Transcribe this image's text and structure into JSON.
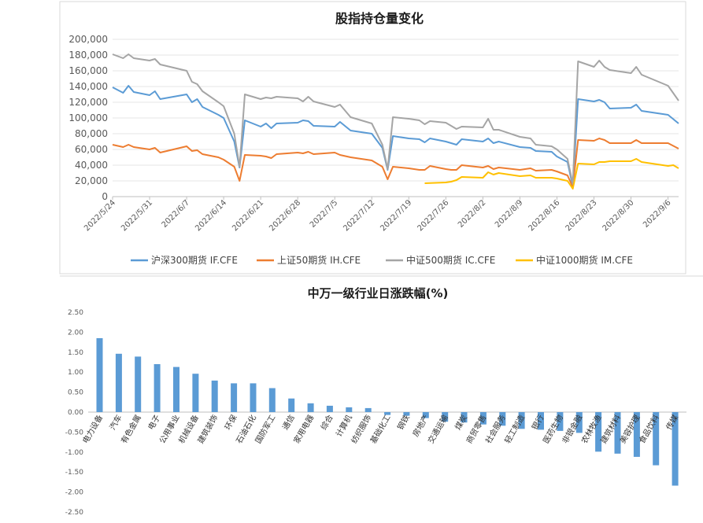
{
  "chart_data": [
    {
      "type": "line",
      "title": "股指持仓量变化",
      "ylim": [
        0,
        200000
      ],
      "yticks": [
        "0",
        "20,000",
        "40,000",
        "60,000",
        "80,000",
        "100,000",
        "120,000",
        "140,000",
        "160,000",
        "180,000",
        "200,000"
      ],
      "xlabels": [
        "2022/5/24",
        "2022/5/31",
        "2022/6/7",
        "2022/6/14",
        "2022/6/21",
        "2022/6/28",
        "2022/7/5",
        "2022/7/12",
        "2022/7/19",
        "2022/7/26",
        "2022/8/2",
        "2022/8/9",
        "2022/8/16",
        "2022/8/23",
        "2022/8/30",
        "2022/9/6"
      ],
      "grid": true,
      "legend_position": "bottom",
      "series": [
        {
          "name": "沪深300期货 IF.CFE",
          "color": "#5B9BD5",
          "points": [
            [
              "2022/5/24",
              139000
            ],
            [
              "2022/5/26",
              132000
            ],
            [
              "2022/5/27",
              141000
            ],
            [
              "2022/5/28",
              133000
            ],
            [
              "2022/5/31",
              129000
            ],
            [
              "2022/6/1",
              134000
            ],
            [
              "2022/6/2",
              124000
            ],
            [
              "2022/6/7",
              130000
            ],
            [
              "2022/6/8",
              120000
            ],
            [
              "2022/6/9",
              124000
            ],
            [
              "2022/6/10",
              114000
            ],
            [
              "2022/6/13",
              104000
            ],
            [
              "2022/6/14",
              100000
            ],
            [
              "2022/6/16",
              70000
            ],
            [
              "2022/6/17",
              37000
            ],
            [
              "2022/6/18",
              97000
            ],
            [
              "2022/6/21",
              89000
            ],
            [
              "2022/6/22",
              93000
            ],
            [
              "2022/6/23",
              87000
            ],
            [
              "2022/6/24",
              93000
            ],
            [
              "2022/6/28",
              94000
            ],
            [
              "2022/6/29",
              97000
            ],
            [
              "2022/6/30",
              96000
            ],
            [
              "2022/7/1",
              90000
            ],
            [
              "2022/7/5",
              89000
            ],
            [
              "2022/7/6",
              95000
            ],
            [
              "2022/7/8",
              84000
            ],
            [
              "2022/7/12",
              80000
            ],
            [
              "2022/7/14",
              62000
            ],
            [
              "2022/7/15",
              34000
            ],
            [
              "2022/7/16",
              77000
            ],
            [
              "2022/7/19",
              74000
            ],
            [
              "2022/7/21",
              73000
            ],
            [
              "2022/7/22",
              69000
            ],
            [
              "2022/7/23",
              74000
            ],
            [
              "2022/7/26",
              70000
            ],
            [
              "2022/7/27",
              68000
            ],
            [
              "2022/7/28",
              66000
            ],
            [
              "2022/7/29",
              73000
            ],
            [
              "2022/8/2",
              70000
            ],
            [
              "2022/8/3",
              74000
            ],
            [
              "2022/8/4",
              68000
            ],
            [
              "2022/8/5",
              70000
            ],
            [
              "2022/8/9",
              63000
            ],
            [
              "2022/8/11",
              62000
            ],
            [
              "2022/8/12",
              58000
            ],
            [
              "2022/8/15",
              57000
            ],
            [
              "2022/8/16",
              51000
            ],
            [
              "2022/8/18",
              44000
            ],
            [
              "2022/8/19",
              13000
            ],
            [
              "2022/8/20",
              124000
            ],
            [
              "2022/8/23",
              121000
            ],
            [
              "2022/8/24",
              123000
            ],
            [
              "2022/8/25",
              120000
            ],
            [
              "2022/8/26",
              112000
            ],
            [
              "2022/8/30",
              113000
            ],
            [
              "2022/8/31",
              117000
            ],
            [
              "2022/9/1",
              109000
            ],
            [
              "2022/9/6",
              104000
            ],
            [
              "2022/9/8",
              93000
            ]
          ]
        },
        {
          "name": "上证50期货 IH.CFE",
          "color": "#ED7D31",
          "points": [
            [
              "2022/5/24",
              66000
            ],
            [
              "2022/5/26",
              63000
            ],
            [
              "2022/5/27",
              66000
            ],
            [
              "2022/5/28",
              63000
            ],
            [
              "2022/5/31",
              60000
            ],
            [
              "2022/6/1",
              62000
            ],
            [
              "2022/6/2",
              56000
            ],
            [
              "2022/6/7",
              64000
            ],
            [
              "2022/6/8",
              58000
            ],
            [
              "2022/6/9",
              59000
            ],
            [
              "2022/6/10",
              54000
            ],
            [
              "2022/6/13",
              50000
            ],
            [
              "2022/6/14",
              47000
            ],
            [
              "2022/6/16",
              38000
            ],
            [
              "2022/6/17",
              20000
            ],
            [
              "2022/6/18",
              53000
            ],
            [
              "2022/6/21",
              52000
            ],
            [
              "2022/6/22",
              51000
            ],
            [
              "2022/6/23",
              49000
            ],
            [
              "2022/6/24",
              54000
            ],
            [
              "2022/6/28",
              56000
            ],
            [
              "2022/6/29",
              55000
            ],
            [
              "2022/6/30",
              57000
            ],
            [
              "2022/7/1",
              54000
            ],
            [
              "2022/7/5",
              56000
            ],
            [
              "2022/7/6",
              53000
            ],
            [
              "2022/7/8",
              50000
            ],
            [
              "2022/7/12",
              46000
            ],
            [
              "2022/7/14",
              38000
            ],
            [
              "2022/7/15",
              22000
            ],
            [
              "2022/7/16",
              38000
            ],
            [
              "2022/7/19",
              36000
            ],
            [
              "2022/7/21",
              34000
            ],
            [
              "2022/7/22",
              34000
            ],
            [
              "2022/7/23",
              39000
            ],
            [
              "2022/7/26",
              35000
            ],
            [
              "2022/7/27",
              34000
            ],
            [
              "2022/7/28",
              34000
            ],
            [
              "2022/7/29",
              40000
            ],
            [
              "2022/8/2",
              37000
            ],
            [
              "2022/8/3",
              39000
            ],
            [
              "2022/8/4",
              35000
            ],
            [
              "2022/8/5",
              37000
            ],
            [
              "2022/8/9",
              34000
            ],
            [
              "2022/8/11",
              36000
            ],
            [
              "2022/8/12",
              33000
            ],
            [
              "2022/8/15",
              34000
            ],
            [
              "2022/8/16",
              32000
            ],
            [
              "2022/8/18",
              27000
            ],
            [
              "2022/8/19",
              12000
            ],
            [
              "2022/8/20",
              72000
            ],
            [
              "2022/8/23",
              71000
            ],
            [
              "2022/8/24",
              74000
            ],
            [
              "2022/8/25",
              72000
            ],
            [
              "2022/8/26",
              68000
            ],
            [
              "2022/8/30",
              68000
            ],
            [
              "2022/8/31",
              72000
            ],
            [
              "2022/9/1",
              68000
            ],
            [
              "2022/9/6",
              68000
            ],
            [
              "2022/9/8",
              61000
            ]
          ]
        },
        {
          "name": "中证500期货 IC.CFE",
          "color": "#A5A5A5",
          "points": [
            [
              "2022/5/24",
              181000
            ],
            [
              "2022/5/26",
              176000
            ],
            [
              "2022/5/27",
              181000
            ],
            [
              "2022/5/28",
              176000
            ],
            [
              "2022/5/31",
              173000
            ],
            [
              "2022/6/1",
              175000
            ],
            [
              "2022/6/2",
              168000
            ],
            [
              "2022/6/7",
              160000
            ],
            [
              "2022/6/8",
              146000
            ],
            [
              "2022/6/9",
              143000
            ],
            [
              "2022/6/10",
              134000
            ],
            [
              "2022/6/13",
              120000
            ],
            [
              "2022/6/14",
              115000
            ],
            [
              "2022/6/16",
              80000
            ],
            [
              "2022/6/17",
              38000
            ],
            [
              "2022/6/18",
              130000
            ],
            [
              "2022/6/21",
              124000
            ],
            [
              "2022/6/22",
              126000
            ],
            [
              "2022/6/23",
              125000
            ],
            [
              "2022/6/24",
              127000
            ],
            [
              "2022/6/28",
              125000
            ],
            [
              "2022/6/29",
              121000
            ],
            [
              "2022/6/30",
              127000
            ],
            [
              "2022/7/1",
              121000
            ],
            [
              "2022/7/5",
              114000
            ],
            [
              "2022/7/6",
              117000
            ],
            [
              "2022/7/8",
              101000
            ],
            [
              "2022/7/12",
              93000
            ],
            [
              "2022/7/14",
              66000
            ],
            [
              "2022/7/15",
              35000
            ],
            [
              "2022/7/16",
              101000
            ],
            [
              "2022/7/19",
              99000
            ],
            [
              "2022/7/21",
              97000
            ],
            [
              "2022/7/22",
              92000
            ],
            [
              "2022/7/23",
              96000
            ],
            [
              "2022/7/26",
              94000
            ],
            [
              "2022/7/27",
              90000
            ],
            [
              "2022/7/28",
              86000
            ],
            [
              "2022/7/29",
              89000
            ],
            [
              "2022/8/2",
              88000
            ],
            [
              "2022/8/3",
              99000
            ],
            [
              "2022/8/4",
              85000
            ],
            [
              "2022/8/5",
              85000
            ],
            [
              "2022/8/9",
              76000
            ],
            [
              "2022/8/11",
              74000
            ],
            [
              "2022/8/12",
              66000
            ],
            [
              "2022/8/15",
              64000
            ],
            [
              "2022/8/16",
              60000
            ],
            [
              "2022/8/18",
              48000
            ],
            [
              "2022/8/19",
              16000
            ],
            [
              "2022/8/20",
              172000
            ],
            [
              "2022/8/23",
              165000
            ],
            [
              "2022/8/24",
              173000
            ],
            [
              "2022/8/25",
              165000
            ],
            [
              "2022/8/26",
              161000
            ],
            [
              "2022/8/30",
              157000
            ],
            [
              "2022/8/31",
              165000
            ],
            [
              "2022/9/1",
              155000
            ],
            [
              "2022/9/6",
              141000
            ],
            [
              "2022/9/8",
              122000
            ]
          ]
        },
        {
          "name": "中证1000期货 IM.CFE",
          "color": "#FFC000",
          "points": [
            [
              "2022/7/22",
              17000
            ],
            [
              "2022/7/26",
              18000
            ],
            [
              "2022/7/27",
              19000
            ],
            [
              "2022/7/28",
              21000
            ],
            [
              "2022/7/29",
              25000
            ],
            [
              "2022/8/2",
              24000
            ],
            [
              "2022/8/3",
              31000
            ],
            [
              "2022/8/4",
              28000
            ],
            [
              "2022/8/5",
              30000
            ],
            [
              "2022/8/9",
              26000
            ],
            [
              "2022/8/11",
              27000
            ],
            [
              "2022/8/12",
              24000
            ],
            [
              "2022/8/15",
              24000
            ],
            [
              "2022/8/16",
              23000
            ],
            [
              "2022/8/18",
              20000
            ],
            [
              "2022/8/19",
              10000
            ],
            [
              "2022/8/20",
              42000
            ],
            [
              "2022/8/23",
              41000
            ],
            [
              "2022/8/24",
              44000
            ],
            [
              "2022/8/25",
              44000
            ],
            [
              "2022/8/26",
              45000
            ],
            [
              "2022/8/30",
              45000
            ],
            [
              "2022/8/31",
              48000
            ],
            [
              "2022/9/1",
              44000
            ],
            [
              "2022/9/6",
              39000
            ],
            [
              "2022/9/7",
              40000
            ],
            [
              "2022/9/8",
              36000
            ]
          ]
        }
      ]
    },
    {
      "type": "bar",
      "title": "中万一级行业日涨跌幅(%)",
      "ylim": [
        -2.5,
        2.5
      ],
      "yticks": [
        "2.50",
        "2.00",
        "1.50",
        "1.00",
        "0.50",
        "0.00",
        "-0.50",
        "-1.00",
        "-1.50",
        "-2.00",
        "-2.50"
      ],
      "color": "#5B9BD5",
      "categories": [
        "电力设备",
        "汽车",
        "有色金属",
        "电子",
        "公用事业",
        "机械设备",
        "建筑装饰",
        "环保",
        "石油石化",
        "国防军工",
        "通信",
        "家用电器",
        "综合",
        "计算机",
        "纺织服饰",
        "基础化工",
        "钢铁",
        "房地产",
        "交通运输",
        "煤炭",
        "商贸零售",
        "社会服务",
        "轻工制造",
        "银行",
        "医药生物",
        "非银金融",
        "农林牧渔",
        "建筑材料",
        "美容护理",
        "食品饮料",
        "传媒"
      ],
      "values": [
        1.85,
        1.46,
        1.39,
        1.2,
        1.13,
        0.96,
        0.79,
        0.72,
        0.72,
        0.6,
        0.34,
        0.22,
        0.16,
        0.12,
        0.1,
        -0.07,
        -0.09,
        -0.15,
        -0.24,
        -0.26,
        -0.31,
        -0.34,
        -0.42,
        -0.44,
        -0.47,
        -0.52,
        -0.99,
        -1.04,
        -1.12,
        -1.33,
        -1.84
      ]
    }
  ]
}
